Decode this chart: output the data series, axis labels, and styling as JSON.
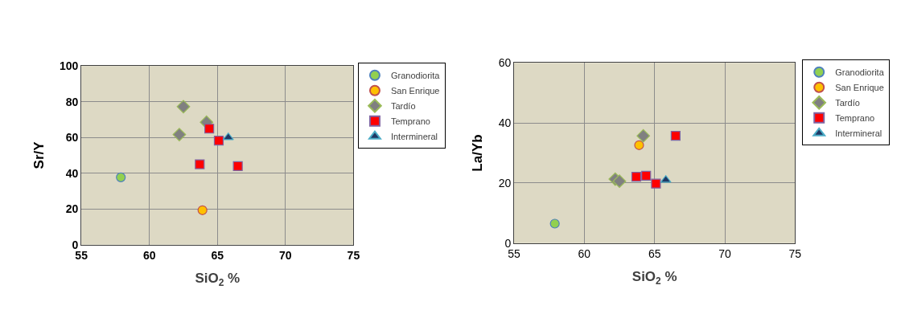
{
  "chart_data": [
    {
      "type": "scatter",
      "xlabel": "SiO$_{2}$ %",
      "ylabel": "Sr/Y",
      "xlim": [
        55,
        75
      ],
      "xticks": [
        55,
        60,
        65,
        70,
        75
      ],
      "ylim": [
        0,
        100
      ],
      "yticks": [
        0,
        20,
        40,
        60,
        80,
        100
      ],
      "grid": true,
      "legend": "right",
      "series": [
        {
          "name": "Granodiorita",
          "color": "#92d050",
          "marker": "circle",
          "x": [
            57.9
          ],
          "values": [
            37.7
          ]
        },
        {
          "name": "San Enrique",
          "color": "#ffc000",
          "marker": "circle",
          "x": [
            63.9
          ],
          "values": [
            19.3
          ]
        },
        {
          "name": "Tardío",
          "color": "#808080",
          "marker": "diamond",
          "x": [
            62.5,
            64.2,
            62.2
          ],
          "values": [
            77.2,
            68.5,
            61.6
          ]
        },
        {
          "name": "Temprano",
          "color": "#ff0000",
          "marker": "square",
          "x": [
            64.4,
            65.1,
            63.7,
            66.5
          ],
          "values": [
            64.9,
            58.2,
            45,
            44
          ]
        },
        {
          "name": "Intermineral",
          "color": "#1f3864",
          "marker": "triangle",
          "x": [
            65.8
          ],
          "values": [
            60
          ]
        }
      ]
    },
    {
      "type": "scatter",
      "xlabel": "SiO$_{2}$ %",
      "ylabel": "La/Yb",
      "xlim": [
        55,
        75
      ],
      "xticks": [
        55,
        60,
        65,
        70,
        75
      ],
      "ylim": [
        0,
        60
      ],
      "yticks": [
        0,
        20,
        40,
        60
      ],
      "grid": true,
      "legend": "right",
      "series": [
        {
          "name": "Granodiorita",
          "color": "#92d050",
          "marker": "circle",
          "x": [
            57.9
          ],
          "values": [
            6.5
          ]
        },
        {
          "name": "San Enrique",
          "color": "#ffc000",
          "marker": "circle",
          "x": [
            63.9
          ],
          "values": [
            32.6
          ]
        },
        {
          "name": "Tardío",
          "color": "#808080",
          "marker": "diamond",
          "x": [
            64.2,
            62.2,
            62.5
          ],
          "values": [
            35.7,
            21.3,
            20.6
          ]
        },
        {
          "name": "Temprano",
          "color": "#ff0000",
          "marker": "square",
          "x": [
            63.7,
            64.4,
            65.1,
            66.5
          ],
          "values": [
            22.1,
            22.4,
            19.8,
            35.7
          ]
        },
        {
          "name": "Intermineral",
          "color": "#1f3864",
          "marker": "triangle",
          "x": [
            65.8
          ],
          "values": [
            21
          ]
        }
      ]
    }
  ]
}
